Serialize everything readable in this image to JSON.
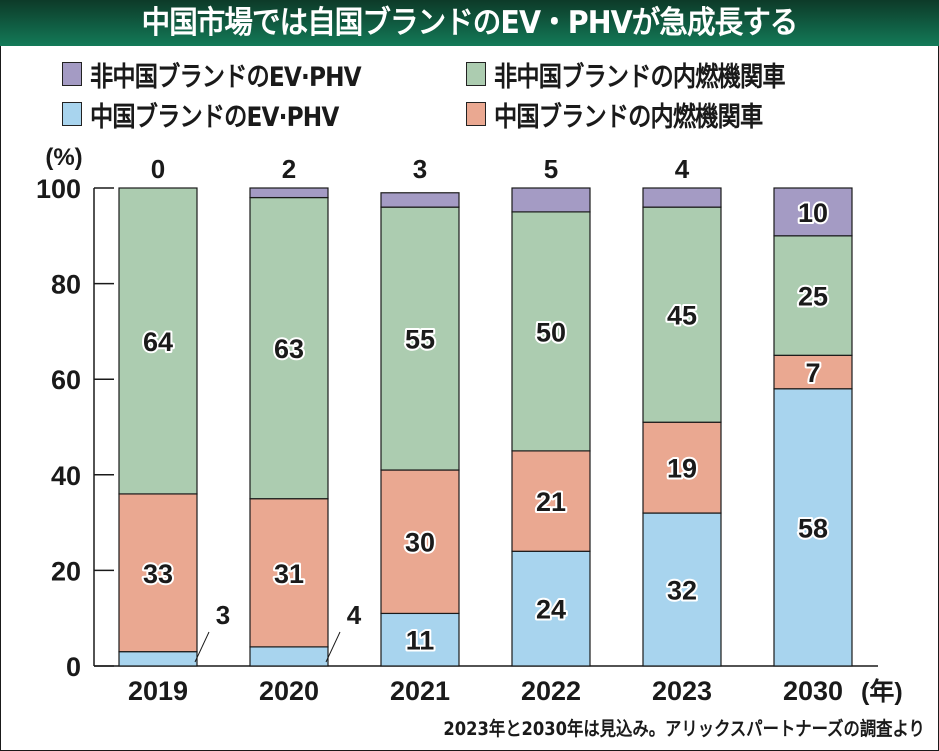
{
  "header": {
    "title": "中国市場では自国ブランドのEV・PHVが急成長する"
  },
  "legend": [
    {
      "label": "非中国ブランドのEV·PHV",
      "color": "#a49bc4"
    },
    {
      "label": "非中国ブランドの内燃機関車",
      "color": "#acccb0"
    },
    {
      "label": "中国ブランドのEV·PHV",
      "color": "#a8d4ee"
    },
    {
      "label": "中国ブランドの内燃機関車",
      "color": "#eaa891"
    }
  ],
  "footnote": "2023年と2030年は見込み。アリックスパートナーズの調査より",
  "chart_data": {
    "type": "bar",
    "stacked": true,
    "title": "中国市場では自国ブランドのEV・PHVが急成長する",
    "xlabel": "(年)",
    "ylabel": "(%)",
    "ylim": [
      0,
      100
    ],
    "yticks": [
      0,
      20,
      40,
      60,
      80,
      100
    ],
    "grid": false,
    "legend_position": "top",
    "categories": [
      "2019",
      "2020",
      "2021",
      "2022",
      "2023",
      "2030"
    ],
    "series": [
      {
        "name": "中国ブランドのEV·PHV",
        "color": "#a8d4ee",
        "values": [
          3,
          4,
          11,
          24,
          32,
          58
        ]
      },
      {
        "name": "中国ブランドの内燃機関車",
        "color": "#eaa891",
        "values": [
          33,
          31,
          30,
          21,
          19,
          7
        ]
      },
      {
        "name": "非中国ブランドの内燃機関車",
        "color": "#acccb0",
        "values": [
          64,
          63,
          55,
          50,
          45,
          25
        ]
      },
      {
        "name": "非中国ブランドのEV·PHV",
        "color": "#a49bc4",
        "values": [
          0,
          2,
          3,
          5,
          4,
          10
        ]
      }
    ],
    "annotations": [
      {
        "category": "2019",
        "series": "中国ブランドのEV·PHV",
        "text": "3",
        "style": "leader-line"
      },
      {
        "category": "2020",
        "series": "中国ブランドのEV·PHV",
        "text": "4",
        "style": "leader-line"
      }
    ],
    "top_labels": [
      "0",
      "2",
      "3",
      "5",
      "4",
      null
    ],
    "inside_label_min": 7
  }
}
